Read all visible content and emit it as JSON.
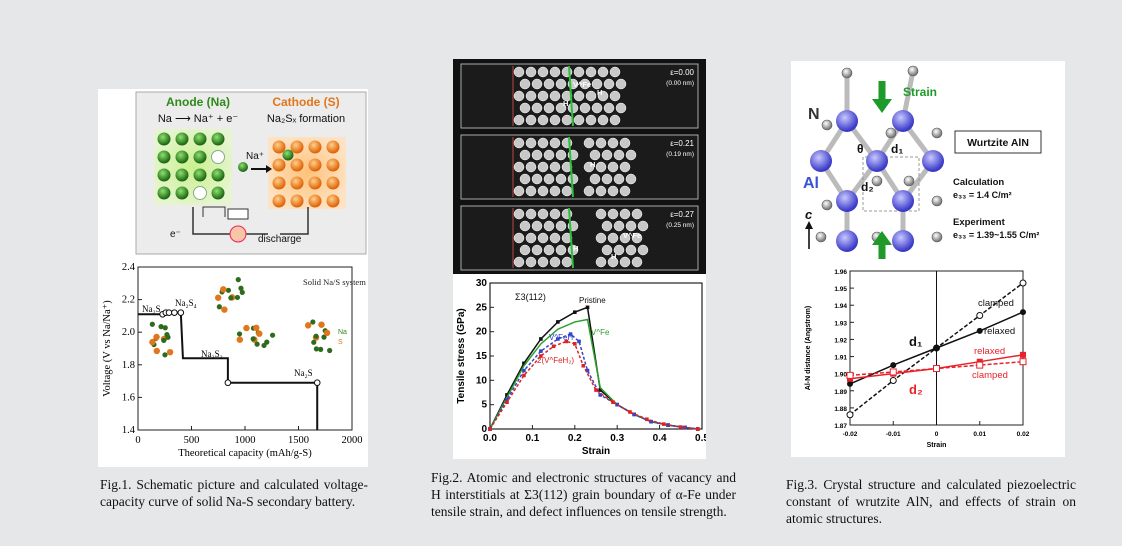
{
  "fig1": {
    "schematic": {
      "anode_title": "Anode (Na)",
      "cathode_title": "Cathode (S)",
      "anode_reaction": "Na ⟶ Na⁺ + e⁻",
      "cathode_reaction": "Na₂Sₓ formation",
      "ion_label": "Na⁺",
      "electron_label": "e⁻",
      "circuit_label": "discharge"
    },
    "annotations": {
      "na2s_top": "Na₂S",
      "na2s4": "Na₂S₄",
      "na2s2": "Na₂S₂",
      "na2s_bottom": "Na₂S",
      "system_label": "Solid Na/S system",
      "na_atom": "Na",
      "s_atom": "S"
    },
    "caption": "Fig.1. Schematic picture and calculated voltage-capacity curve of solid Na-S secondary battery."
  },
  "fig2": {
    "images": [
      {
        "strain": "ε=0.00",
        "length": "(0.00 nm)"
      },
      {
        "strain": "ε=0.21",
        "length": "(0.19 nm)"
      },
      {
        "strain": "ε=0.27",
        "length": "(0.25 nm)"
      }
    ],
    "image_labels": {
      "vfe": "V^Fe",
      "h": "H"
    },
    "annotations": {
      "sigma": "Σ3(112)",
      "pristine": "Pristine",
      "vfe": "V^Fe",
      "vfeh": "V^FeH",
      "vfeh2": "2(V^FeH₂)"
    },
    "caption": "Fig.2. Atomic and electronic structures of vacancy and H interstitials at Σ3(112) grain boundary of α-Fe under tensile strain, and defect influences on tensile strength."
  },
  "fig3": {
    "structure": {
      "strain_label": "Strain",
      "n_label": "N",
      "al_label": "Al",
      "theta": "θ",
      "d1": "d₁",
      "d2": "d₂",
      "c_axis": "c",
      "box_title": "Wurtzite AlN",
      "calc_title": "Calculation",
      "calc_value": "e₃₃ = 1.4 C/m²",
      "exp_title": "Experiment",
      "exp_value": "e₃₃ = 1.39~1.55 C/m²"
    },
    "annotations": {
      "clamped_top": "clamped",
      "relaxed_top": "relaxed",
      "d1": "d₁",
      "relaxed_bottom": "relaxed",
      "clamped_bottom": "clamped",
      "d2": "d₂"
    },
    "caption": "Fig.3. Crystal structure and calculated piezoelectric constant of wrutzite AlN, and effects of strain on atomic structures."
  },
  "chart_data": [
    {
      "type": "line",
      "xlabel": "Theoretical capacity (mAh/g-S)",
      "ylabel": "Voltage (V vs Na/Na⁺)",
      "xlim": [
        0,
        2000
      ],
      "ylim": [
        1.4,
        2.4
      ],
      "xticks": [
        0,
        500,
        1000,
        1500,
        2000
      ],
      "xtick_labels": [
        "0",
        "500",
        "1000",
        "1500",
        "2000"
      ],
      "yticks": [
        1.4,
        1.6,
        1.8,
        2.0,
        2.2,
        2.4
      ],
      "ytick_labels": [
        "1.4",
        "1.6",
        "1.8",
        "2.0",
        "2.2",
        "2.4"
      ],
      "grid": false,
      "series": [
        {
          "x": [
            0,
            150,
            150,
            230,
            230,
            260,
            290,
            340,
            340,
            400,
            420,
            420,
            840,
            840,
            1675,
            1675
          ],
          "y": [
            2.11,
            2.11,
            2.11,
            2.11,
            2.11,
            2.12,
            2.12,
            2.12,
            2.12,
            2.12,
            1.84,
            1.84,
            1.84,
            1.69,
            1.69,
            1.38
          ]
        }
      ],
      "markers": [
        [
          230,
          2.11
        ],
        [
          260,
          2.12
        ],
        [
          290,
          2.12
        ],
        [
          340,
          2.12
        ],
        [
          400,
          2.12
        ],
        [
          840,
          1.69
        ],
        [
          1675,
          1.69
        ]
      ]
    },
    {
      "type": "line",
      "xlabel": "Strain",
      "ylabel": "Tensile stress (GPa)",
      "xlim": [
        0,
        0.5
      ],
      "ylim": [
        0,
        30
      ],
      "xticks": [
        0,
        0.1,
        0.2,
        0.3,
        0.4,
        0.5
      ],
      "xtick_labels": [
        "0.0",
        "0.1",
        "0.2",
        "0.3",
        "0.4",
        "0.5"
      ],
      "yticks": [
        0,
        5,
        10,
        15,
        20,
        25,
        30
      ],
      "ytick_labels": [
        "0",
        "5",
        "10",
        "15",
        "20",
        "25",
        "30"
      ],
      "grid": false,
      "series": [
        {
          "color": "#111111",
          "dash": false,
          "marker": "square",
          "x": [
            0,
            0.04,
            0.08,
            0.12,
            0.16,
            0.2,
            0.23,
            0.26,
            0.3,
            0.34,
            0.38,
            0.42,
            0.46,
            0.49
          ],
          "y": [
            0,
            7,
            13.5,
            18.5,
            22,
            24,
            25,
            8,
            5,
            3,
            1.5,
            0.8,
            0.3,
            0
          ]
        },
        {
          "color": "#2ca02c",
          "dash": false,
          "marker": "none",
          "x": [
            0,
            0.04,
            0.08,
            0.12,
            0.16,
            0.2,
            0.23,
            0.26,
            0.3,
            0.34,
            0.38,
            0.42,
            0.46,
            0.49
          ],
          "y": [
            0,
            6.5,
            13,
            17.5,
            20.5,
            22,
            22.5,
            8.5,
            5,
            3,
            1.5,
            0.8,
            0.3,
            0
          ]
        },
        {
          "color": "#3344cc",
          "dash": true,
          "marker": "square",
          "x": [
            0,
            0.04,
            0.08,
            0.12,
            0.16,
            0.19,
            0.21,
            0.23,
            0.26,
            0.3,
            0.34,
            0.38,
            0.42,
            0.46,
            0.49
          ],
          "y": [
            0,
            6,
            12,
            16,
            18.5,
            19.5,
            18,
            12,
            7,
            5,
            3,
            1.5,
            0.8,
            0.3,
            0
          ]
        },
        {
          "color": "#dd2222",
          "dash": true,
          "marker": "square",
          "x": [
            0,
            0.04,
            0.08,
            0.12,
            0.15,
            0.18,
            0.2,
            0.22,
            0.25,
            0.29,
            0.33,
            0.37,
            0.41,
            0.45,
            0.49
          ],
          "y": [
            0,
            5.5,
            11,
            15,
            17,
            18,
            17.5,
            13,
            8,
            5.5,
            3.5,
            2,
            1,
            0.4,
            0
          ]
        }
      ]
    },
    {
      "type": "line",
      "xlabel": "Strain",
      "ylabel": "Al-N distance (Angstrom)",
      "xlim": [
        -0.02,
        0.02
      ],
      "ylim": [
        1.87,
        1.96
      ],
      "xticks": [
        -0.02,
        -0.01,
        0,
        0.01,
        0.02
      ],
      "xtick_labels": [
        "-0.02",
        "-0.01",
        "0",
        "0.01",
        "0.02"
      ],
      "yticks": [
        1.87,
        1.88,
        1.89,
        1.9,
        1.91,
        1.92,
        1.93,
        1.94,
        1.95,
        1.96
      ],
      "ytick_labels": [
        "1.87",
        "1.88",
        "1.89",
        "1.90",
        "1.91",
        "1.92",
        "1.93",
        "1.94",
        "1.95",
        "1.96"
      ],
      "grid": false,
      "series": [
        {
          "color": "#111111",
          "dash": true,
          "marker": "open",
          "x": [
            -0.02,
            -0.01,
            0,
            0.01,
            0.02
          ],
          "y": [
            1.876,
            1.896,
            1.915,
            1.934,
            1.953
          ]
        },
        {
          "color": "#111111",
          "dash": false,
          "marker": "filled",
          "x": [
            -0.02,
            -0.01,
            0,
            0.01,
            0.02
          ],
          "y": [
            1.894,
            1.905,
            1.915,
            1.925,
            1.936
          ]
        },
        {
          "color": "#e8222a",
          "dash": false,
          "marker": "filled-square",
          "x": [
            -0.02,
            -0.01,
            0,
            0.01,
            0.02
          ],
          "y": [
            1.897,
            1.9,
            1.903,
            1.907,
            1.911
          ]
        },
        {
          "color": "#e8222a",
          "dash": true,
          "marker": "open-square",
          "x": [
            -0.02,
            -0.01,
            0,
            0.01,
            0.02
          ],
          "y": [
            1.899,
            1.901,
            1.903,
            1.905,
            1.907
          ]
        }
      ]
    }
  ]
}
